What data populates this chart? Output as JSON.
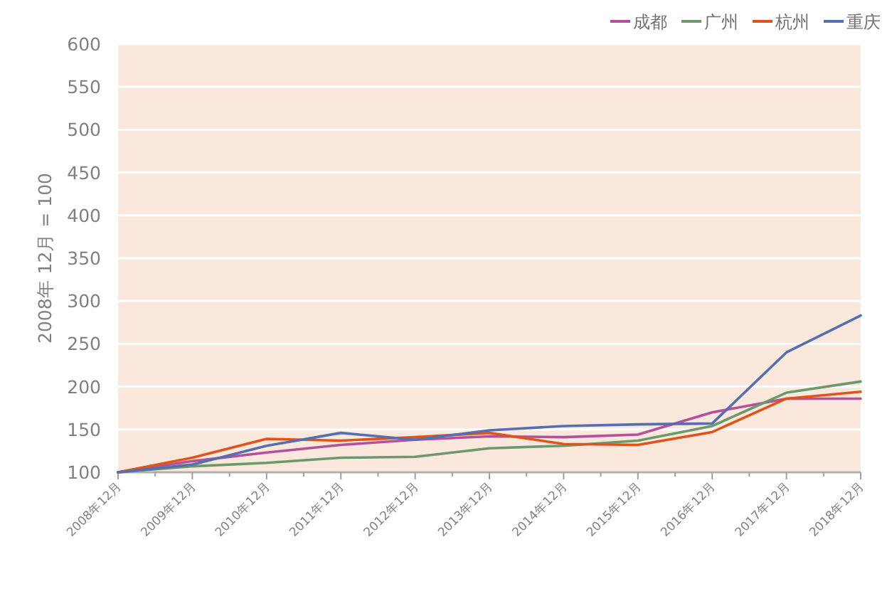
{
  "chart_data": {
    "type": "line",
    "ylabel": "2008年 12月 = 100",
    "categories": [
      "2008年12月",
      "2009年12月",
      "2010年12月",
      "2011年12月",
      "2012年12月",
      "2013年12月",
      "2014年12月",
      "2015年12月",
      "2016年12月",
      "2017年12月",
      "2018年12月"
    ],
    "series": [
      {
        "name": "成都",
        "color": "#b5509a",
        "values": [
          100,
          113,
          123,
          132,
          138,
          142,
          141,
          144,
          170,
          186,
          186
        ]
      },
      {
        "name": "广州",
        "color": "#6a9a6a",
        "values": [
          100,
          107,
          111,
          117,
          118,
          128,
          131,
          137,
          154,
          193,
          206
        ]
      },
      {
        "name": "杭州",
        "color": "#e0541c",
        "values": [
          100,
          117,
          139,
          137,
          141,
          146,
          133,
          132,
          147,
          186,
          194
        ]
      },
      {
        "name": "重庆",
        "color": "#5470b0",
        "values": [
          100,
          109,
          131,
          146,
          138,
          149,
          154,
          156,
          157,
          240,
          283
        ]
      }
    ],
    "ylim": [
      100,
      600
    ],
    "yticks": [
      100,
      150,
      200,
      250,
      300,
      350,
      400,
      450,
      500,
      550,
      600
    ],
    "grid": "y",
    "legend": "top right",
    "marker": "none",
    "line_style": "solid"
  }
}
